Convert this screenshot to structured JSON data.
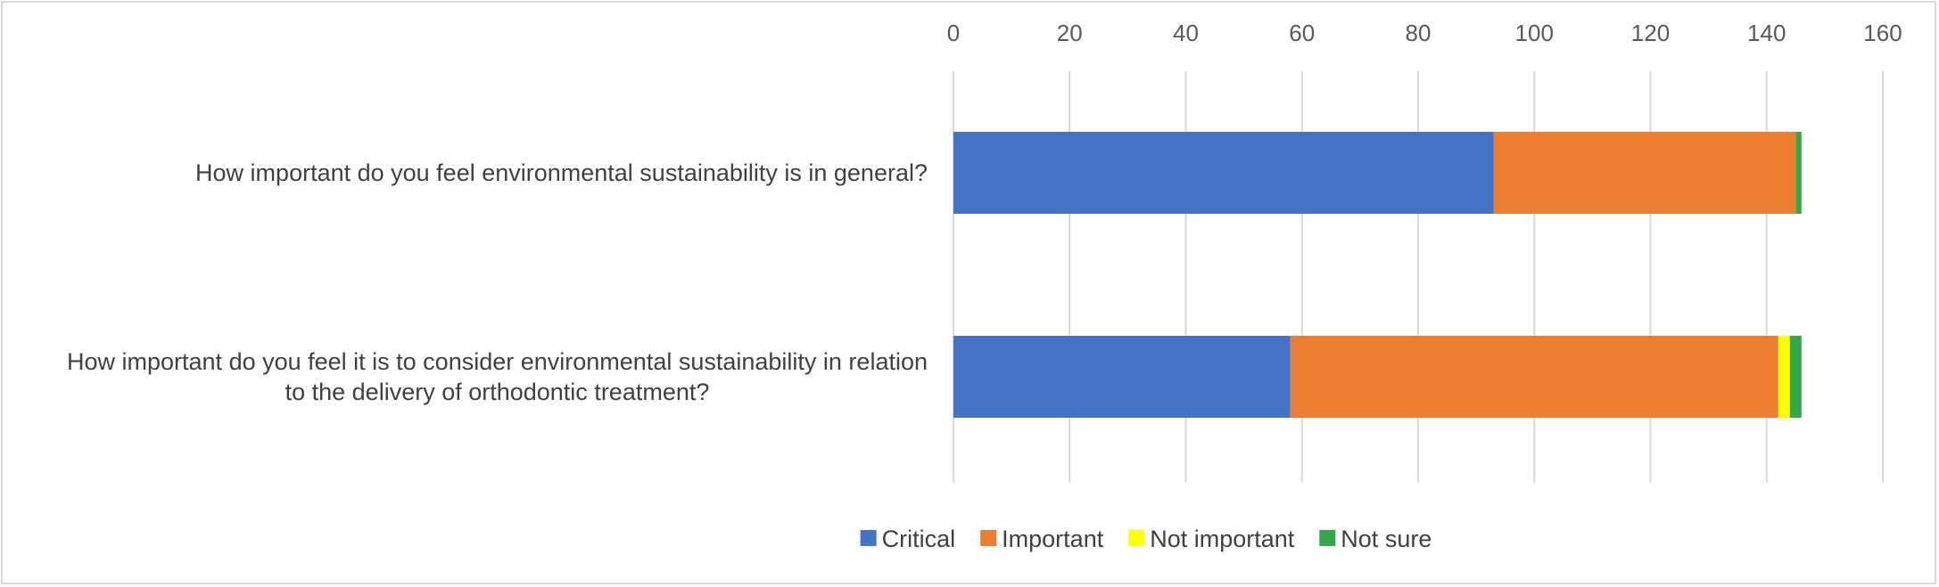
{
  "chart_data": {
    "type": "bar",
    "orientation": "horizontal",
    "stacked": true,
    "xlim": [
      0,
      160
    ],
    "xticks": [
      0,
      20,
      40,
      60,
      80,
      100,
      120,
      140,
      160
    ],
    "x_axis_position": "top",
    "grid": true,
    "legend_position": "bottom",
    "categories": [
      [
        "How important do you feel environmental sustainability is in general?"
      ],
      [
        "How important do you feel it is to consider environmental sustainability in relation",
        "to the delivery of orthodontic treatment?"
      ]
    ],
    "series": [
      {
        "name": "Critical",
        "color": "#4472C4",
        "values": [
          93,
          58
        ]
      },
      {
        "name": "Important",
        "color": "#ED7D31",
        "values": [
          52,
          84
        ]
      },
      {
        "name": "Not important",
        "color": "#FFFF00",
        "values": [
          0,
          2
        ]
      },
      {
        "name": "Not sure",
        "color": "#33A84B",
        "values": [
          1,
          2
        ]
      }
    ]
  }
}
